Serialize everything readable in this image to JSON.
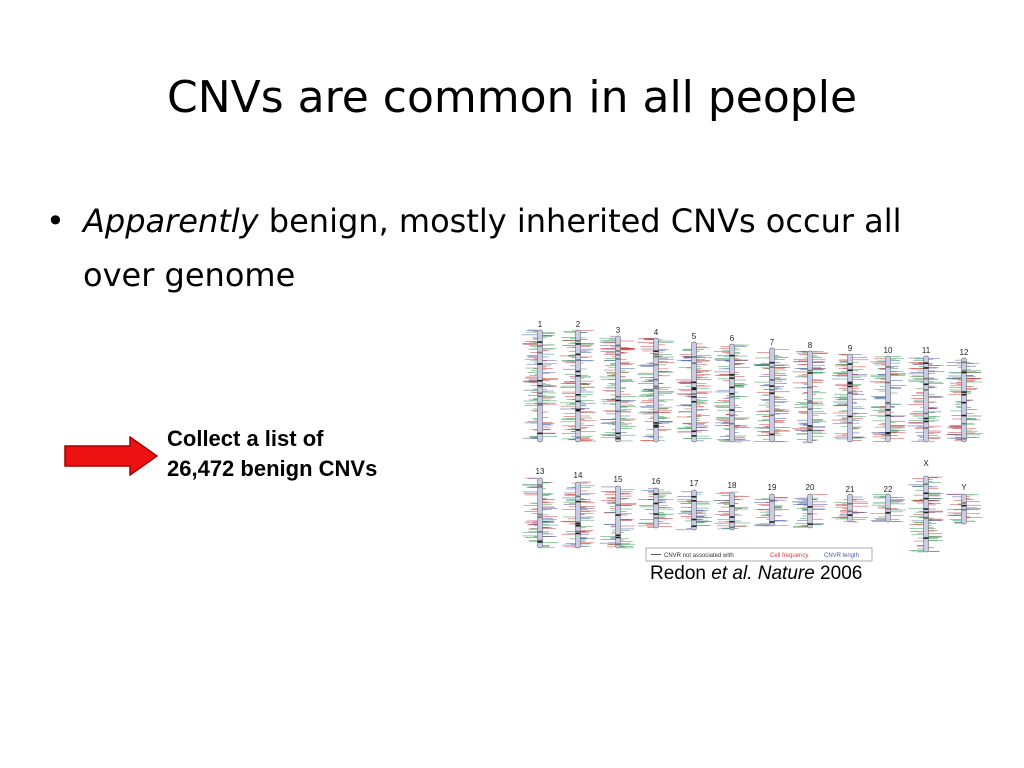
{
  "slide": {
    "title": "CNVs are common in all people",
    "bullet": {
      "marker": "•",
      "italic_lead": "Apparently",
      "text": " benign, mostly inherited CNVs occur all over genome"
    },
    "callout": {
      "line1": "Collect a list of",
      "line2": "26,472 benign CNVs"
    },
    "arrow": {
      "color": "#ee1111",
      "outline": "#a40000",
      "icon": "right-arrow-icon"
    },
    "figure": {
      "top_row_labels": [
        "1",
        "2",
        "3",
        "4",
        "5",
        "6",
        "7",
        "8",
        "9",
        "10",
        "11",
        "12"
      ],
      "bottom_row_labels": [
        "13",
        "14",
        "15",
        "16",
        "17",
        "18",
        "19",
        "20",
        "21",
        "22",
        "X",
        "Y"
      ],
      "legend": {
        "item1": "CNVR not associated with",
        "item2": "Cell frequency",
        "item3": "CNVR length"
      },
      "colors": {
        "green": "#3a9a5a",
        "red": "#d04040",
        "blue": "#4a5aa8",
        "chromosome": "#c8cce4"
      }
    },
    "citation": {
      "author": "Redon ",
      "etal": "et al. Nature",
      "year": " 2006"
    }
  }
}
